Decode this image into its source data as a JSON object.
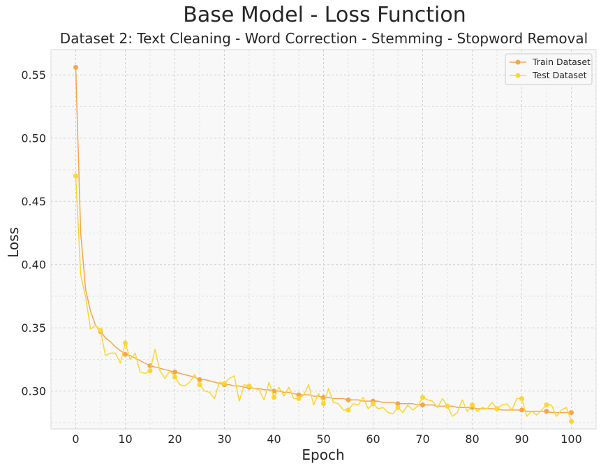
{
  "chart_data": {
    "type": "line",
    "title": "Base Model - Loss Function",
    "subtitle": "Dataset 2: Text Cleaning - Word Correction - Stemming - Stopword Removal",
    "xlabel": "Epoch",
    "ylabel": "Loss",
    "xlim": [
      -5,
      105
    ],
    "ylim": [
      0.27,
      0.57
    ],
    "x_ticks": [
      0,
      10,
      20,
      30,
      40,
      50,
      60,
      70,
      80,
      90,
      100
    ],
    "y_ticks": [
      0.3,
      0.35,
      0.4,
      0.45,
      0.5,
      0.55
    ],
    "y_tick_labels": [
      "0.30",
      "0.35",
      "0.40",
      "0.45",
      "0.50",
      "0.55"
    ],
    "grid": true,
    "legend_position": "top-right",
    "series": [
      {
        "name": "Train Dataset",
        "color": "#f4a64a",
        "marker_every": 5,
        "x_start": 0,
        "values": [
          0.556,
          0.425,
          0.38,
          0.363,
          0.352,
          0.347,
          0.342,
          0.339,
          0.335,
          0.332,
          0.329,
          0.328,
          0.326,
          0.324,
          0.322,
          0.32,
          0.319,
          0.318,
          0.317,
          0.316,
          0.315,
          0.314,
          0.313,
          0.312,
          0.311,
          0.309,
          0.309,
          0.308,
          0.307,
          0.306,
          0.305,
          0.305,
          0.304,
          0.304,
          0.303,
          0.303,
          0.302,
          0.302,
          0.301,
          0.301,
          0.3,
          0.3,
          0.299,
          0.299,
          0.298,
          0.297,
          0.297,
          0.297,
          0.296,
          0.296,
          0.295,
          0.295,
          0.294,
          0.294,
          0.294,
          0.293,
          0.293,
          0.293,
          0.292,
          0.292,
          0.292,
          0.292,
          0.291,
          0.291,
          0.291,
          0.29,
          0.29,
          0.29,
          0.29,
          0.289,
          0.289,
          0.289,
          0.289,
          0.288,
          0.288,
          0.288,
          0.288,
          0.287,
          0.287,
          0.287,
          0.287,
          0.286,
          0.286,
          0.286,
          0.286,
          0.286,
          0.285,
          0.285,
          0.285,
          0.285,
          0.285,
          0.284,
          0.284,
          0.284,
          0.284,
          0.284,
          0.283,
          0.283,
          0.283,
          0.283,
          0.283
        ]
      },
      {
        "name": "Test Dataset",
        "color": "#fcd631",
        "marker_every": 5,
        "x_start": 0,
        "values": [
          0.47,
          0.392,
          0.374,
          0.349,
          0.352,
          0.348,
          0.328,
          0.33,
          0.33,
          0.322,
          0.338,
          0.325,
          0.33,
          0.315,
          0.314,
          0.316,
          0.333,
          0.316,
          0.31,
          0.316,
          0.311,
          0.305,
          0.304,
          0.307,
          0.313,
          0.305,
          0.3,
          0.299,
          0.294,
          0.307,
          0.306,
          0.31,
          0.312,
          0.292,
          0.305,
          0.304,
          0.302,
          0.301,
          0.293,
          0.307,
          0.295,
          0.303,
          0.296,
          0.303,
          0.294,
          0.294,
          0.297,
          0.305,
          0.289,
          0.298,
          0.29,
          0.302,
          0.291,
          0.29,
          0.285,
          0.285,
          0.29,
          0.289,
          0.295,
          0.286,
          0.29,
          0.286,
          0.287,
          0.283,
          0.282,
          0.287,
          0.283,
          0.289,
          0.285,
          0.288,
          0.295,
          0.293,
          0.292,
          0.287,
          0.294,
          0.288,
          0.28,
          0.283,
          0.293,
          0.284,
          0.289,
          0.284,
          0.287,
          0.286,
          0.291,
          0.286,
          0.289,
          0.29,
          0.285,
          0.294,
          0.294,
          0.28,
          0.284,
          0.281,
          0.285,
          0.289,
          0.289,
          0.28,
          0.285,
          0.287,
          0.276
        ]
      }
    ]
  }
}
